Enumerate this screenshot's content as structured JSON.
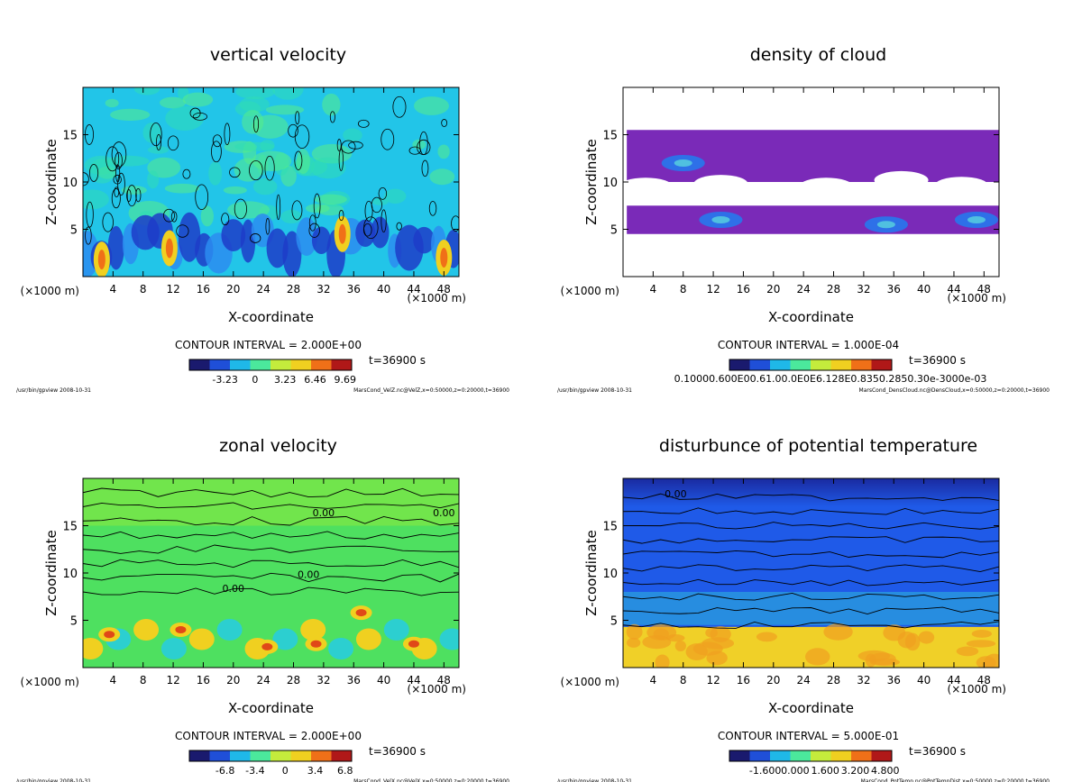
{
  "chart_data": [
    {
      "type": "heatmap",
      "title": "vertical velocity",
      "xlabel": "X-coordinate",
      "ylabel": "Z-coordinate",
      "x_unit": "(×1000 m)",
      "x_unit_right": "(×1000 m)",
      "xticks": [
        4,
        8,
        12,
        16,
        20,
        24,
        28,
        32,
        36,
        40,
        44,
        48
      ],
      "yticks": [
        5,
        10,
        15
      ],
      "xlim": [
        0,
        50
      ],
      "ylim": [
        0,
        20
      ],
      "contour_interval": "CONTOUR INTERVAL = 2.000E+00",
      "time": "t=36900 s",
      "colorbar_ticks": [
        "-3.23",
        "0",
        "3.23",
        "6.46",
        "9.69"
      ],
      "colorbar_colors": [
        "#1a1a6e",
        "#1f4fd8",
        "#1fb8e8",
        "#4be89c",
        "#c4ec3c",
        "#f0d020",
        "#f07018",
        "#b01818"
      ],
      "field_colors": [
        "#22c5e8",
        "#30dcb4",
        "#58ec88",
        "#2c8cf0",
        "#1d3cc8"
      ],
      "footer_left": "/usr/bin/gpview   2008-10-31",
      "footer_right": "MarsCond_VelZ.nc@VelZ,x=0:50000,z=0:20000,t=36900"
    },
    {
      "type": "heatmap",
      "title": "density of cloud",
      "xlabel": "X-coordinate",
      "ylabel": "Z-coordinate",
      "x_unit": "(×1000 m)",
      "x_unit_right": "(×1000 m)",
      "xticks": [
        4,
        8,
        12,
        16,
        20,
        24,
        28,
        32,
        36,
        40,
        44,
        48
      ],
      "yticks": [
        5,
        10,
        15
      ],
      "xlim": [
        0,
        50
      ],
      "ylim": [
        0,
        20
      ],
      "contour_interval": "CONTOUR INTERVAL = 1.000E-04",
      "time": "t=36900 s",
      "colorbar_ticks_text": "0.10000.600E00.61.00.0E0E6.128E0.8350.2850.30e-3000e-03",
      "colorbar_colors": [
        "#1a1a6e",
        "#1f4fd8",
        "#1fb8e8",
        "#4be89c",
        "#c4ec3c",
        "#f0d020",
        "#f07018",
        "#b01818"
      ],
      "field_colors": [
        "#7a2ab8",
        "#6a30c8",
        "#2e70e8",
        "#50c0e0"
      ],
      "footer_left": "/usr/bin/gpview   2008-10-31",
      "footer_right": "MarsCond_DensCloud.nc@DensCloud,x=0:50000,z=0:20000,t=36900"
    },
    {
      "type": "heatmap",
      "title": "zonal velocity",
      "xlabel": "X-coordinate",
      "ylabel": "Z-coordinate",
      "x_unit": "(×1000 m)",
      "x_unit_right": "(×1000 m)",
      "xticks": [
        4,
        8,
        12,
        16,
        20,
        24,
        28,
        32,
        36,
        40,
        44,
        48
      ],
      "yticks": [
        5,
        10,
        15
      ],
      "xlim": [
        0,
        50
      ],
      "ylim": [
        0,
        20
      ],
      "contour_interval": "CONTOUR INTERVAL = 2.000E+00",
      "time": "t=36900 s",
      "contour_label": "0.00",
      "colorbar_ticks": [
        "-6.8",
        "-3.4",
        "0",
        "3.4",
        "6.8"
      ],
      "colorbar_colors": [
        "#1a1a6e",
        "#1f4fd8",
        "#1fb8e8",
        "#4be89c",
        "#c4ec3c",
        "#f0d020",
        "#f07018",
        "#b01818"
      ],
      "field_colors": [
        "#4ee060",
        "#88e840",
        "#2ccfd0",
        "#f0d020",
        "#e04818"
      ],
      "footer_left": "/usr/bin/gpview   2008-10-31",
      "footer_right": "MarsCond_VelX.nc@VelX,x=0:50000,z=0:20000,t=36900"
    },
    {
      "type": "heatmap",
      "title": "disturbunce of potential temperature",
      "xlabel": "X-coordinate",
      "ylabel": "Z-coordinate",
      "x_unit": "(×1000 m)",
      "x_unit_right": "(×1000 m)",
      "xticks": [
        4,
        8,
        12,
        16,
        20,
        24,
        28,
        32,
        36,
        40,
        44,
        48
      ],
      "yticks": [
        5,
        10,
        15
      ],
      "xlim": [
        0,
        50
      ],
      "ylim": [
        0,
        20
      ],
      "contour_interval": "CONTOUR INTERVAL = 5.000E-01",
      "time": "t=36900 s",
      "contour_label": "0.00",
      "colorbar_ticks": [
        "-1.600",
        "0.000",
        "1.600",
        "3.200",
        "4.800"
      ],
      "colorbar_colors": [
        "#1a1a6e",
        "#1f4fd8",
        "#1fb8e8",
        "#4be89c",
        "#c4ec3c",
        "#f0d020",
        "#f07018",
        "#b01818"
      ],
      "field_colors": [
        "#1f5ae8",
        "#1a3cb8",
        "#30c0d8",
        "#f0d028",
        "#f0a020"
      ],
      "footer_left": "/usr/bin/gpview   2008-10-31",
      "footer_right": "MarsCond_PotTemp.nc@PotTempDist,x=0:50000,z=0:20000,t=36900"
    }
  ]
}
